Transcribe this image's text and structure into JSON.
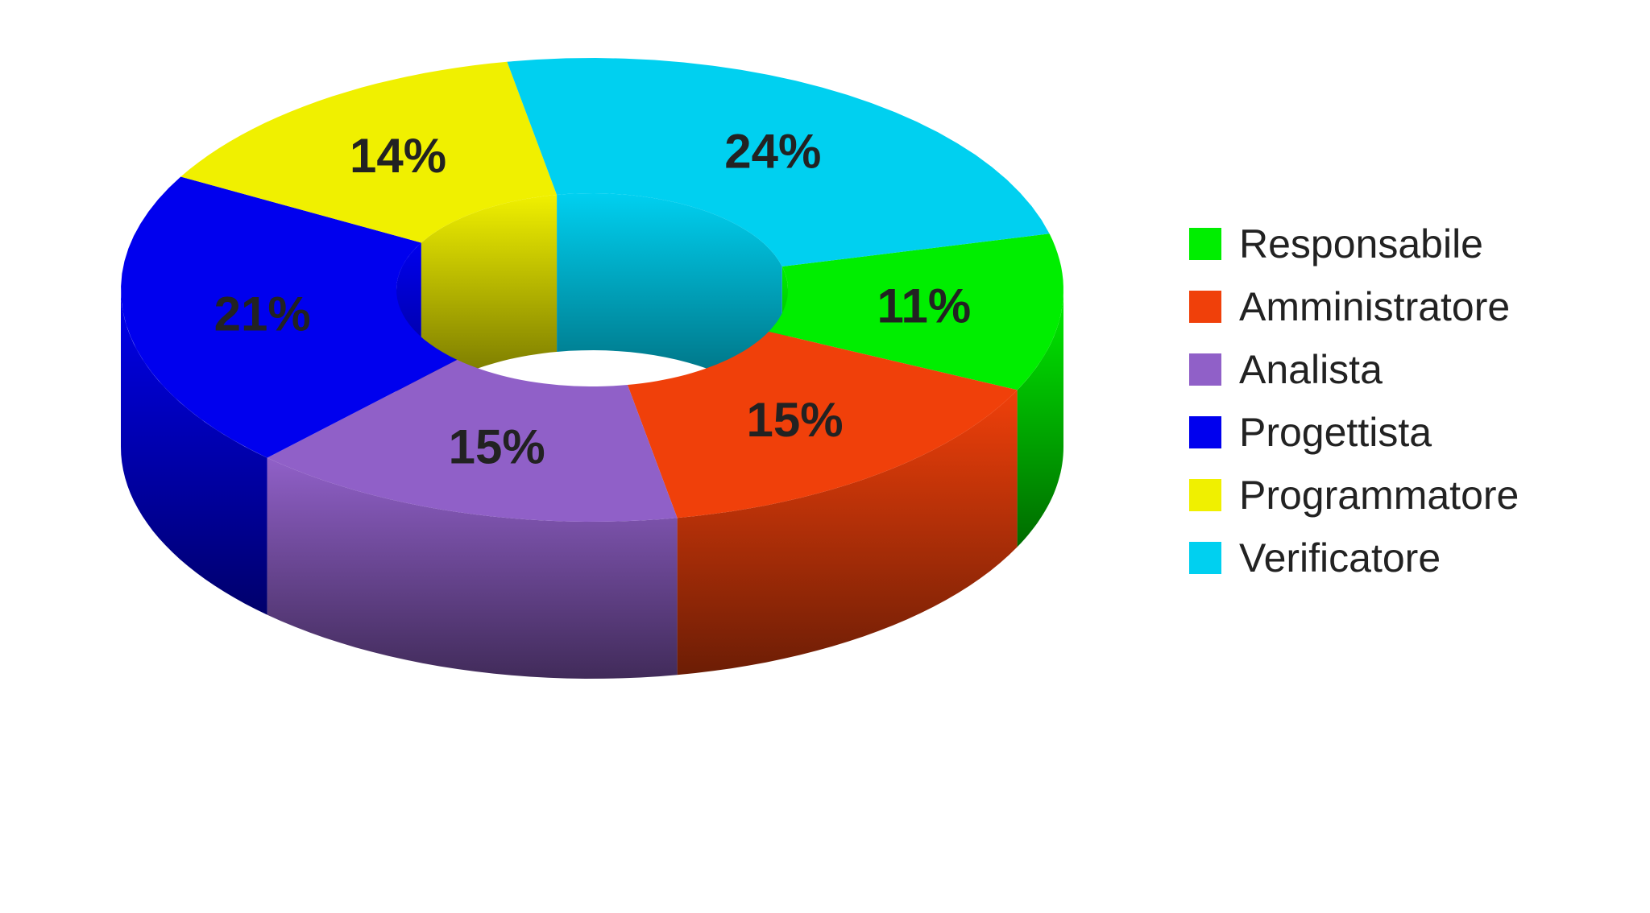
{
  "chart_data": {
    "type": "pie",
    "style": "3d-donut",
    "legend_position": "right",
    "slices": [
      {
        "label": "Responsabile",
        "value": 11,
        "display": "11%",
        "color": "#00ee00"
      },
      {
        "label": "Amministratore",
        "value": 15,
        "display": "15%",
        "color": "#f0400a"
      },
      {
        "label": "Analista",
        "value": 15,
        "display": "15%",
        "color": "#9060c8"
      },
      {
        "label": "Progettista",
        "value": 21,
        "display": "21%",
        "color": "#0000ee"
      },
      {
        "label": "Programmatore",
        "value": 14,
        "display": "14%",
        "color": "#f0f000"
      },
      {
        "label": "Verificatore",
        "value": 24,
        "display": "24%",
        "color": "#00d0f0"
      }
    ]
  }
}
